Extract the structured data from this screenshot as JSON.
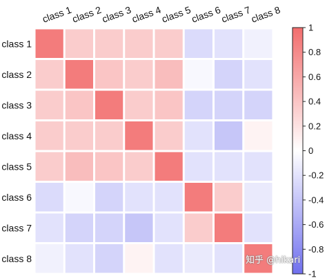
{
  "chart_data": {
    "type": "heatmap",
    "title": "",
    "rows": [
      "class 1",
      "class 2",
      "class 3",
      "class 4",
      "class 5",
      "class 6",
      "class 7",
      "class 8"
    ],
    "columns": [
      "class 1",
      "class 2",
      "class 3",
      "class 4",
      "class 5",
      "class 6",
      "class 7",
      "class 8"
    ],
    "values": [
      [
        0.9,
        0.35,
        0.35,
        0.35,
        0.35,
        -0.25,
        -0.2,
        -0.1
      ],
      [
        0.35,
        0.9,
        0.4,
        0.35,
        0.45,
        -0.05,
        -0.3,
        -0.2
      ],
      [
        0.35,
        0.4,
        0.9,
        0.35,
        0.4,
        -0.3,
        -0.3,
        -0.3
      ],
      [
        0.35,
        0.35,
        0.35,
        0.9,
        0.35,
        -0.2,
        -0.4,
        0.08
      ],
      [
        0.35,
        0.45,
        0.4,
        0.35,
        0.9,
        -0.2,
        -0.2,
        -0.2
      ],
      [
        -0.25,
        -0.05,
        -0.3,
        -0.2,
        -0.2,
        0.9,
        0.35,
        -0.15
      ],
      [
        -0.2,
        -0.3,
        -0.3,
        -0.4,
        -0.2,
        0.35,
        0.9,
        -0.2
      ],
      [
        -0.1,
        -0.2,
        -0.3,
        0.08,
        -0.2,
        -0.15,
        -0.2,
        0.9
      ]
    ],
    "colorbar": {
      "range": [
        -1,
        1
      ],
      "ticks": [
        "1",
        "0.8",
        "0.6",
        "0.4",
        "0.2",
        "0",
        "-0.2",
        "-0.4",
        "-0.6",
        "-0.8",
        "-1"
      ],
      "tick_values": [
        1,
        0.8,
        0.6,
        0.4,
        0.2,
        0,
        -0.2,
        -0.4,
        -0.6,
        -0.8,
        -1
      ],
      "colors": {
        "positive": "#f26d6d",
        "zero": "#ffffff",
        "negative": "#7070ee"
      }
    },
    "grid": true,
    "legend": "colorbar-right"
  },
  "watermark": "知乎 @hikari"
}
